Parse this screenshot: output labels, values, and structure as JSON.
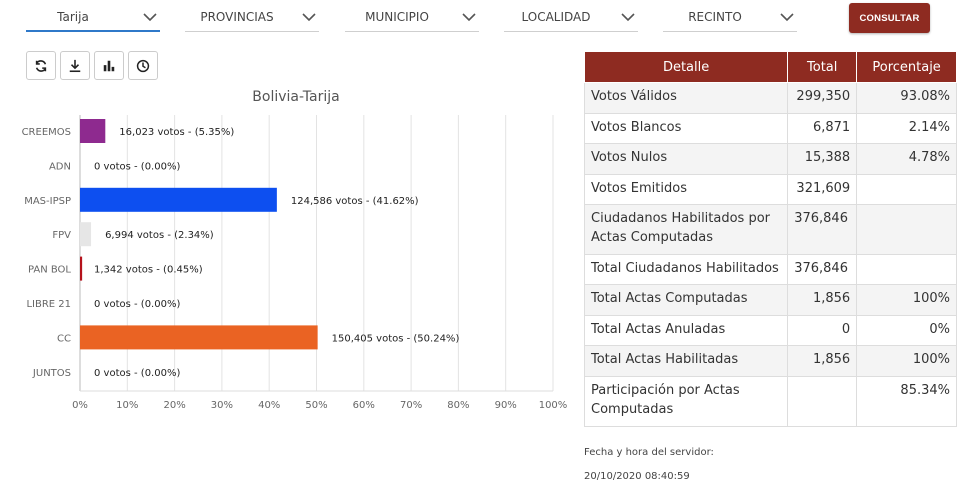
{
  "filters": {
    "departamento": "Tarija",
    "provincias": "PROVINCIAS",
    "municipio": "MUNICIPIO",
    "localidad": "LOCALIDAD",
    "recinto": "RECINTO",
    "consultar_label": "CONSULTAR"
  },
  "toolbar": {
    "icons": [
      "refresh-icon",
      "download-icon",
      "bar-chart-icon",
      "clock-icon"
    ]
  },
  "colors": {
    "accent": "#8e2b21",
    "active_underline": "#2f79c9"
  },
  "chart_data": {
    "type": "bar",
    "orientation": "horizontal",
    "title": "Bolivia-Tarija",
    "categories": [
      "CREEMOS",
      "ADN",
      "MAS-IPSP",
      "FPV",
      "PAN BOL",
      "LIBRE 21",
      "CC",
      "JUNTOS"
    ],
    "values": [
      5.35,
      0.0,
      41.62,
      2.34,
      0.45,
      0.0,
      50.24,
      0.0
    ],
    "data_labels": [
      "16,023 votos - (5.35%)",
      "0 votos - (0.00%)",
      "124,586 votos - (41.62%)",
      "6,994 votos - (2.34%)",
      "1,342 votos - (0.45%)",
      "0 votos - (0.00%)",
      "150,405 votos - (50.24%)",
      "0 votos - (0.00%)"
    ],
    "colors": [
      "#8e2a8f",
      "#cccccc",
      "#0d4ff0",
      "#e6e6e6",
      "#b5121b",
      "#cccccc",
      "#ea6323",
      "#cccccc"
    ],
    "xlim": [
      0,
      100
    ],
    "xticks": [
      "0%",
      "10%",
      "20%",
      "30%",
      "40%",
      "50%",
      "60%",
      "70%",
      "80%",
      "90%",
      "100%"
    ],
    "grid": true
  },
  "table": {
    "headers": [
      "Detalle",
      "Total",
      "Porcentaje"
    ],
    "rows": [
      {
        "detalle": "Votos Válidos",
        "total": "299,350",
        "porcentaje": "93.08%"
      },
      {
        "detalle": "Votos Blancos",
        "total": "6,871",
        "porcentaje": "2.14%"
      },
      {
        "detalle": "Votos Nulos",
        "total": "15,388",
        "porcentaje": "4.78%"
      },
      {
        "detalle": "Votos Emitidos",
        "total": "321,609",
        "porcentaje": ""
      },
      {
        "detalle": "Ciudadanos Habilitados por Actas Computadas",
        "total": "376,846",
        "porcentaje": ""
      },
      {
        "detalle": "Total Ciudadanos Habilitados",
        "total": "376,846",
        "porcentaje": ""
      },
      {
        "detalle": "Total Actas Computadas",
        "total": "1,856",
        "porcentaje": "100%"
      },
      {
        "detalle": "Total Actas Anuladas",
        "total": "0",
        "porcentaje": "0%"
      },
      {
        "detalle": "Total Actas Habilitadas",
        "total": "1,856",
        "porcentaje": "100%"
      },
      {
        "detalle": "Participación por Actas Computadas",
        "total": "",
        "porcentaje": "85.34%"
      }
    ]
  },
  "server": {
    "label": "Fecha y hora del servidor:",
    "datetime": "20/10/2020 08:40:59"
  }
}
